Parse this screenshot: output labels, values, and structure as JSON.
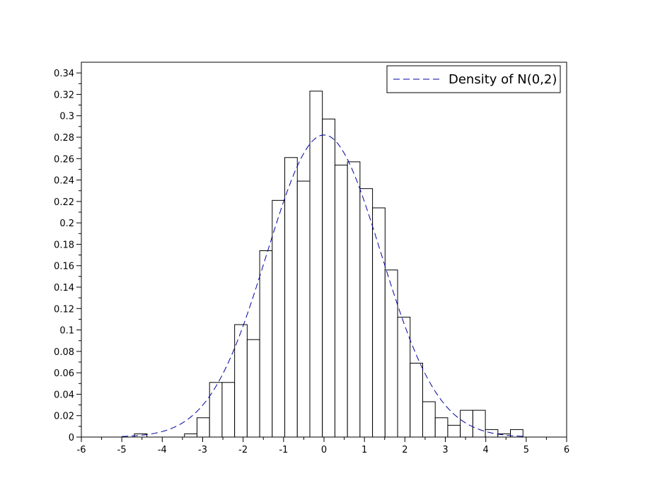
{
  "chart_data": {
    "type": "bar",
    "title": "",
    "xlabel": "",
    "ylabel": "",
    "xlim": [
      -6,
      6
    ],
    "ylim": [
      0,
      0.35
    ],
    "x_ticks": [
      -6,
      -5,
      -4,
      -3,
      -2,
      -1,
      0,
      1,
      2,
      3,
      4,
      5,
      6
    ],
    "y_ticks": [
      0,
      0.02,
      0.04,
      0.06,
      0.08,
      0.1,
      0.12,
      0.14,
      0.16,
      0.18,
      0.2,
      0.22,
      0.24,
      0.26,
      0.28,
      0.3,
      0.32,
      0.34
    ],
    "grid": false,
    "legend_position": "top-right",
    "histogram": {
      "bins": [
        {
          "x0": -5.0,
          "x1": -4.69,
          "value": 0.0
        },
        {
          "x0": -4.69,
          "x1": -4.38,
          "value": 0.003
        },
        {
          "x0": -4.38,
          "x1": -4.07,
          "value": 0.0
        },
        {
          "x0": -4.07,
          "x1": -3.76,
          "value": 0.0
        },
        {
          "x0": -3.76,
          "x1": -3.45,
          "value": 0.0
        },
        {
          "x0": -3.45,
          "x1": -3.14,
          "value": 0.003
        },
        {
          "x0": -3.14,
          "x1": -2.83,
          "value": 0.018
        },
        {
          "x0": -2.83,
          "x1": -2.52,
          "value": 0.051
        },
        {
          "x0": -2.52,
          "x1": -2.21,
          "value": 0.051
        },
        {
          "x0": -2.21,
          "x1": -1.9,
          "value": 0.105
        },
        {
          "x0": -1.9,
          "x1": -1.59,
          "value": 0.091
        },
        {
          "x0": -1.59,
          "x1": -1.28,
          "value": 0.174
        },
        {
          "x0": -1.28,
          "x1": -0.97,
          "value": 0.221
        },
        {
          "x0": -0.97,
          "x1": -0.66,
          "value": 0.261
        },
        {
          "x0": -0.66,
          "x1": -0.35,
          "value": 0.239
        },
        {
          "x0": -0.35,
          "x1": -0.04,
          "value": 0.323
        },
        {
          "x0": -0.04,
          "x1": 0.27,
          "value": 0.297
        },
        {
          "x0": 0.27,
          "x1": 0.58,
          "value": 0.254
        },
        {
          "x0": 0.58,
          "x1": 0.89,
          "value": 0.257
        },
        {
          "x0": 0.89,
          "x1": 1.2,
          "value": 0.232
        },
        {
          "x0": 1.2,
          "x1": 1.51,
          "value": 0.214
        },
        {
          "x0": 1.51,
          "x1": 1.82,
          "value": 0.156
        },
        {
          "x0": 1.82,
          "x1": 2.13,
          "value": 0.112
        },
        {
          "x0": 2.13,
          "x1": 2.44,
          "value": 0.069
        },
        {
          "x0": 2.44,
          "x1": 2.75,
          "value": 0.033
        },
        {
          "x0": 2.75,
          "x1": 3.06,
          "value": 0.018
        },
        {
          "x0": 3.06,
          "x1": 3.37,
          "value": 0.011
        },
        {
          "x0": 3.37,
          "x1": 3.68,
          "value": 0.025
        },
        {
          "x0": 3.68,
          "x1": 3.99,
          "value": 0.025
        },
        {
          "x0": 3.99,
          "x1": 4.3,
          "value": 0.007
        },
        {
          "x0": 4.3,
          "x1": 4.61,
          "value": 0.003
        },
        {
          "x0": 4.61,
          "x1": 4.92,
          "value": 0.007
        }
      ],
      "fill": "#ffffff",
      "stroke": "#000000"
    },
    "density_curve": {
      "name": "Density of N(0,2)",
      "distribution": "normal",
      "mean": 0,
      "variance": 2,
      "x_range": [
        -5,
        5
      ],
      "line_style": "dashed",
      "color": "#0000a0"
    }
  }
}
